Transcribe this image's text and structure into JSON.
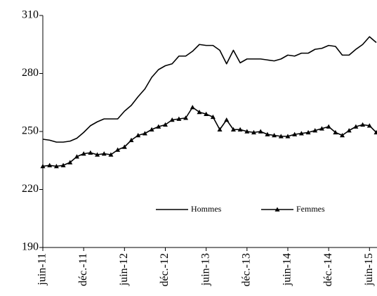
{
  "chart_data": {
    "type": "line",
    "categories": [
      "juin-11",
      null,
      null,
      null,
      null,
      null,
      "déc.-11",
      null,
      null,
      null,
      null,
      null,
      "juin-12",
      null,
      null,
      null,
      null,
      null,
      "déc.-12",
      null,
      null,
      null,
      null,
      null,
      "juin-13",
      null,
      null,
      null,
      null,
      null,
      "déc.-13",
      null,
      null,
      null,
      null,
      null,
      "juin-14",
      null,
      null,
      null,
      null,
      null,
      "déc.-14",
      null,
      null,
      null,
      null,
      null,
      "juin-15",
      null
    ],
    "series": [
      {
        "name": "Hommes",
        "color": "#000000",
        "marker": "none",
        "values": [
          246,
          245.5,
          244.5,
          244.5,
          245,
          246.5,
          249.5,
          253,
          255,
          256.5,
          256.5,
          256.5,
          260.5,
          263.5,
          268,
          272,
          278,
          282,
          284,
          285,
          289,
          289,
          291.5,
          295,
          294.5,
          294.5,
          292,
          285,
          292,
          285.5,
          287.5,
          287.5,
          287.5,
          287,
          286.5,
          287.5,
          289.5,
          289,
          290.5,
          290.5,
          292.5,
          293,
          294.5,
          294,
          289.5,
          289.5,
          292.5,
          295,
          299,
          296
        ]
      },
      {
        "name": "Femmes",
        "color": "#000000",
        "marker": "triangle",
        "values": [
          232,
          232.5,
          232,
          232.5,
          234,
          237,
          238.5,
          239,
          238,
          238.5,
          238,
          240.5,
          242,
          245.5,
          248,
          249,
          251,
          252.5,
          253.5,
          256,
          256.5,
          257,
          262.5,
          260,
          259,
          257.5,
          251,
          256,
          251,
          251,
          250,
          249.5,
          250,
          248.5,
          248,
          247.5,
          247.5,
          248.5,
          249,
          249.5,
          250.5,
          251.5,
          252.5,
          249.5,
          248,
          250.5,
          252.5,
          253.5,
          253,
          249.5
        ]
      }
    ],
    "ylim": [
      190,
      310
    ],
    "yticks": [
      190,
      220,
      250,
      280,
      310
    ],
    "grid": false,
    "legend": "lower center"
  }
}
